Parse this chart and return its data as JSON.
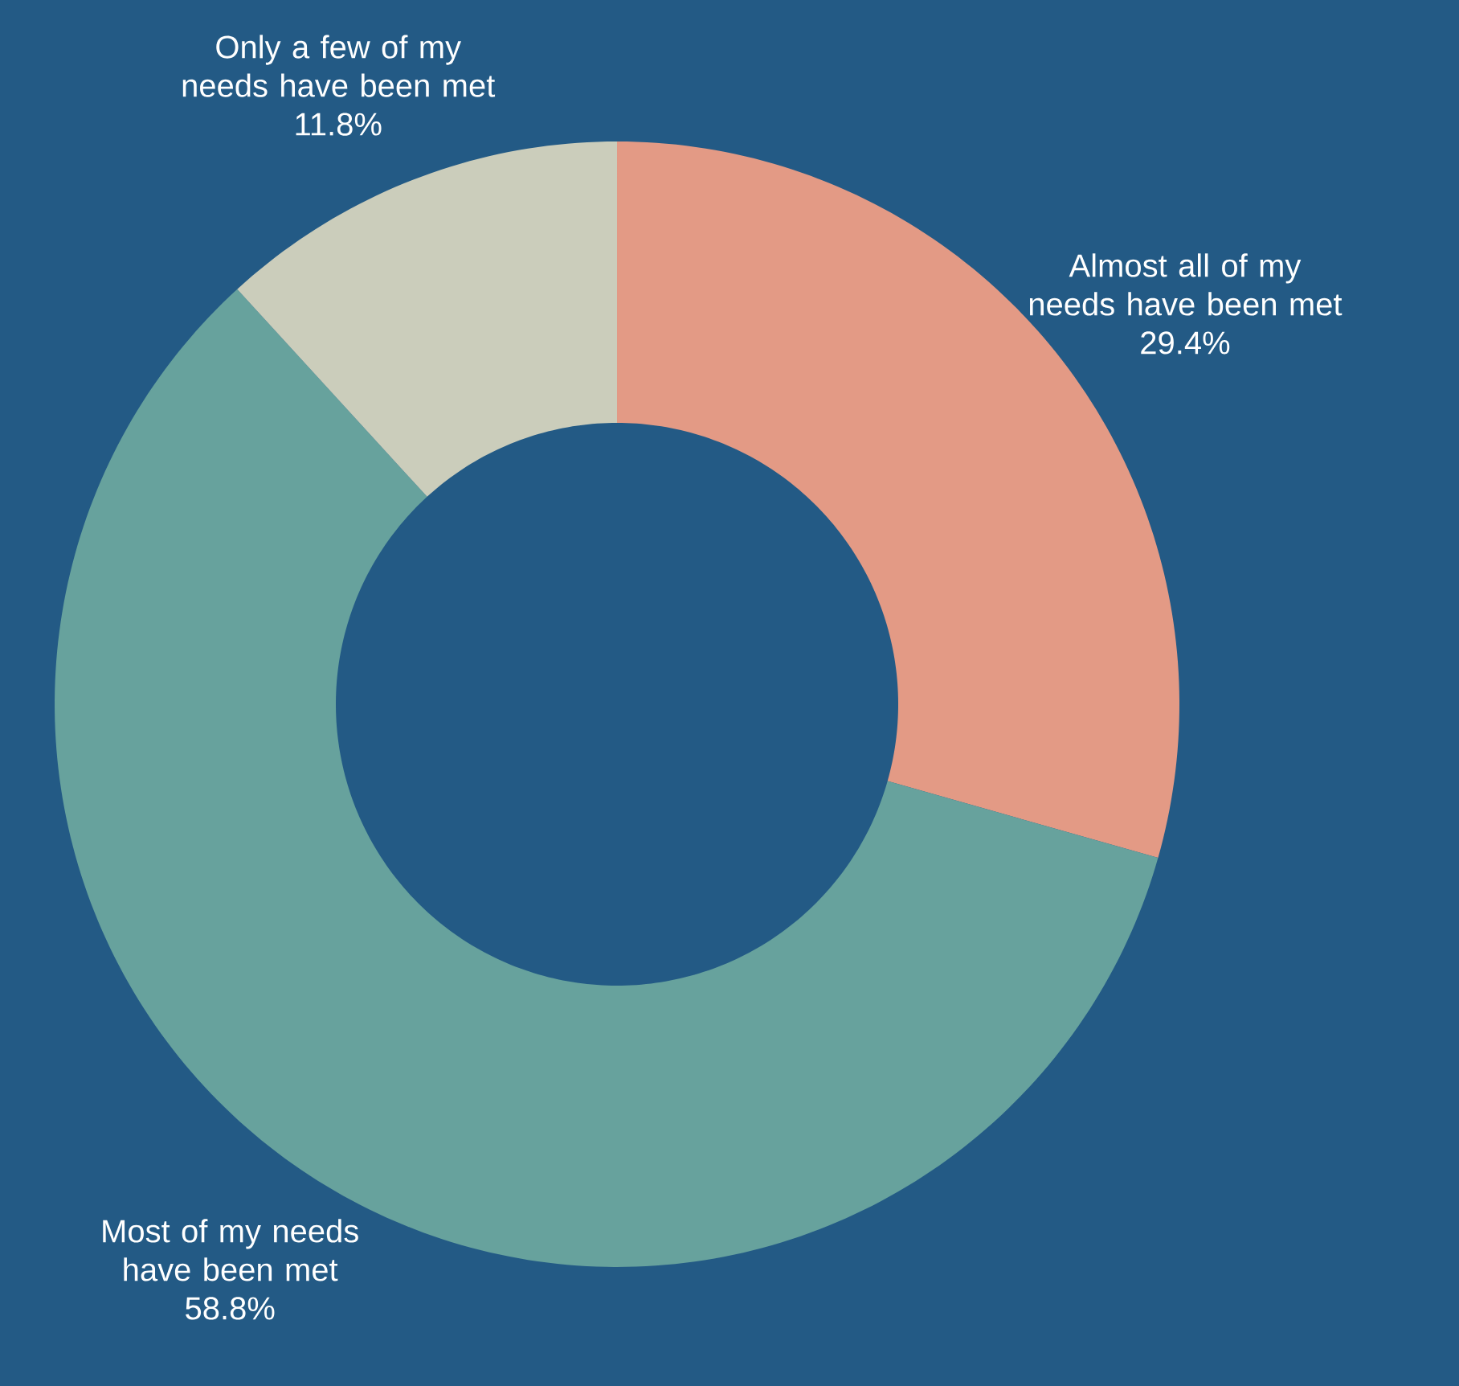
{
  "chart_data": {
    "type": "donut",
    "categories": [
      "Almost all of my needs have been met",
      "Most of my needs have been met",
      "Only a few of my needs have been met"
    ],
    "values": [
      29.4,
      58.8,
      11.8
    ],
    "value_labels": [
      "29.4%",
      "58.8%",
      "11.8%"
    ],
    "colors": [
      "#e39a85",
      "#67a29d",
      "#cbcdbb"
    ]
  }
}
